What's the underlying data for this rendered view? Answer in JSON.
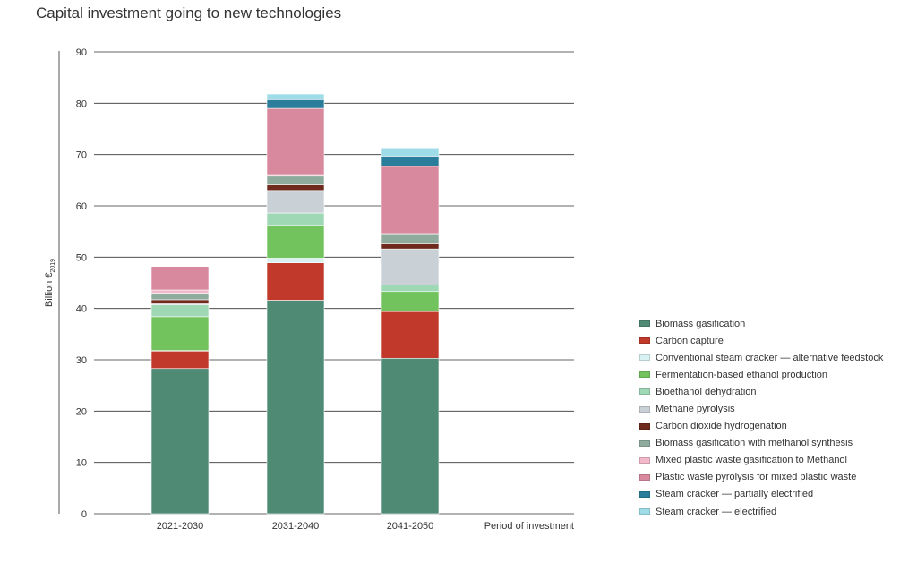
{
  "chart_data": {
    "type": "bar",
    "stacked": true,
    "title": "Capital investment going to new technologies",
    "ylabel": "Billion €",
    "ylabel_subscript": "2019",
    "xlabel": "Period of investment",
    "ylim": [
      0,
      90
    ],
    "yticks": [
      0,
      10,
      20,
      30,
      40,
      50,
      60,
      70,
      80,
      90
    ],
    "grid": true,
    "legend_position": "right",
    "categories": [
      "2021-2030",
      "2031-2040",
      "2041-2050"
    ],
    "series": [
      {
        "name": "Biomass gasification",
        "color": "#4e8a74",
        "values": [
          28.3,
          41.6,
          30.3
        ]
      },
      {
        "name": "Carbon capture",
        "color": "#c0392b",
        "values": [
          3.4,
          7.3,
          9.1
        ]
      },
      {
        "name": "Conventional steam cracker — alternative feedstock",
        "color": "#d8f1f3",
        "values": [
          0.1,
          0.9,
          0.1
        ]
      },
      {
        "name": "Fermentation-based ethanol production",
        "color": "#72c35e",
        "values": [
          6.6,
          6.4,
          3.8
        ]
      },
      {
        "name": "Bioethanol dehydration",
        "color": "#9fd8b5",
        "values": [
          2.3,
          2.4,
          1.3
        ]
      },
      {
        "name": "Methane pyrolysis",
        "color": "#c9d1d7",
        "values": [
          0.2,
          4.4,
          7.0
        ]
      },
      {
        "name": "Carbon dioxide hydrogenation",
        "color": "#6e2a1c",
        "values": [
          0.8,
          1.1,
          1.0
        ]
      },
      {
        "name": "Biomass gasification with methanol synthesis",
        "color": "#8fab9e",
        "values": [
          1.3,
          1.7,
          1.8
        ]
      },
      {
        "name": "Mixed plastic waste gasification to Methanol",
        "color": "#f3b8c9",
        "values": [
          0.6,
          0.3,
          0.2
        ]
      },
      {
        "name": "Plastic waste pyrolysis for mixed plastic waste",
        "color": "#d8899e",
        "values": [
          4.6,
          12.9,
          13.1
        ]
      },
      {
        "name": "Steam cracker — partially electrified",
        "color": "#2a7e9b",
        "values": [
          0.0,
          1.7,
          2.0
        ]
      },
      {
        "name": "Steam cracker — electrified",
        "color": "#9edde8",
        "values": [
          0.0,
          1.1,
          1.6
        ]
      }
    ]
  }
}
